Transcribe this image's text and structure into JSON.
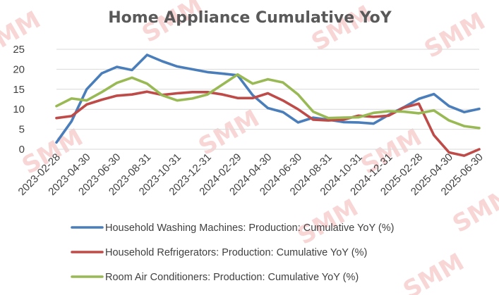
{
  "chart_data": {
    "type": "line",
    "title": "Home Appliance Cumulative YoY",
    "xlabel": "",
    "ylabel": "",
    "ylim": [
      0,
      25
    ],
    "y_ticks": [
      0,
      5,
      10,
      15,
      20,
      25
    ],
    "grid": true,
    "legend_position": "bottom",
    "x": [
      "2023-02-28",
      "2023-03-31",
      "2023-04-30",
      "2023-05-31",
      "2023-06-30",
      "2023-07-31",
      "2023-08-31",
      "2023-09-30",
      "2023-10-31",
      "2023-11-30",
      "2023-12-31",
      "2024-01-31",
      "2024-02-29",
      "2024-03-31",
      "2024-04-30",
      "2024-05-31",
      "2024-06-30",
      "2024-07-31",
      "2024-08-31",
      "2024-09-30",
      "2024-10-31",
      "2024-11-30",
      "2024-12-31",
      "2025-01-31",
      "2025-02-28",
      "2025-03-31",
      "2025-04-30",
      "2025-05-31",
      "2025-06-30"
    ],
    "x_tick_labels": [
      "2023-02-28",
      "2023-04-30",
      "2023-06-30",
      "2023-08-31",
      "2023-10-31",
      "2023-12-31",
      "2024-02-29",
      "2024-04-30",
      "2024-06-30",
      "2024-08-31",
      "2024-10-31",
      "2024-12-31",
      "2025-02-28",
      "2025-04-30",
      "2025-06-30"
    ],
    "series": [
      {
        "name": "Household Washing Machines: Production: Cumulative YoY (%)",
        "color": "#4a7ebb",
        "values": [
          1.7,
          7.0,
          15.0,
          19.0,
          20.6,
          19.8,
          23.6,
          22.0,
          20.7,
          20.0,
          19.3,
          18.9,
          18.5,
          13.5,
          10.3,
          9.3,
          6.7,
          7.9,
          7.4,
          6.8,
          6.7,
          6.4,
          8.6,
          10.5,
          12.6,
          13.8,
          10.8,
          9.3,
          10.1
        ]
      },
      {
        "name": "Household Refrigerators: Production: Cumulative YoY (%)",
        "color": "#be4b48",
        "values": [
          7.8,
          8.3,
          11.2,
          12.4,
          13.4,
          13.7,
          14.4,
          13.6,
          14.0,
          14.3,
          14.3,
          13.7,
          12.8,
          12.8,
          14.0,
          12.2,
          10.0,
          7.4,
          7.2,
          7.4,
          8.4,
          8.1,
          8.4,
          10.4,
          11.4,
          3.5,
          -0.8,
          -1.6,
          0.0
        ]
      },
      {
        "name": "Room Air Conditioners: Production: Cumulative YoY (%)",
        "color": "#98b954",
        "values": [
          10.8,
          12.7,
          12.2,
          14.3,
          16.6,
          17.9,
          16.4,
          13.5,
          12.2,
          12.7,
          13.7,
          16.2,
          18.7,
          16.4,
          17.5,
          16.7,
          13.7,
          9.4,
          7.8,
          7.9,
          8.0,
          9.1,
          9.5,
          9.4,
          9.0,
          9.7,
          7.2,
          5.8,
          5.3
        ]
      }
    ],
    "watermark": "SMM"
  }
}
